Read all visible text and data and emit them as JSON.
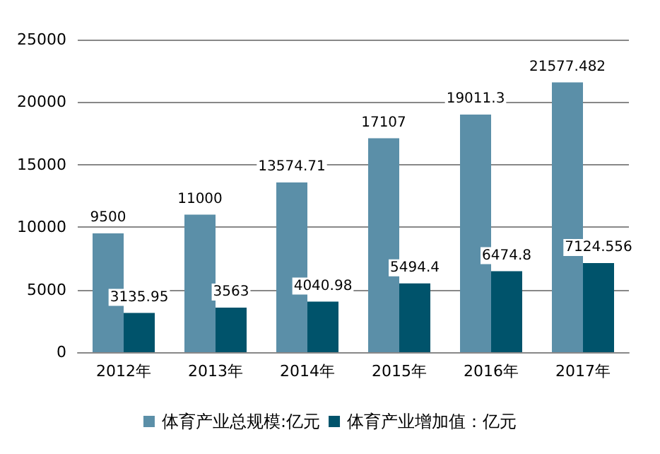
{
  "chart_data": {
    "type": "bar",
    "categories": [
      "2012年",
      "2013年",
      "2014年",
      "2015年",
      "2016年",
      "2017年"
    ],
    "series": [
      {
        "name": "体育产业总规模:亿元",
        "color": "#5b8fa8",
        "values": [
          9500,
          11000,
          13574.71,
          17107,
          19011.3,
          21577.482
        ]
      },
      {
        "name": "体育产业增加值：亿元",
        "color": "#00536b",
        "values": [
          3135.95,
          3563,
          4040.98,
          5494.4,
          6474.8,
          7124.556
        ]
      }
    ],
    "ylim": [
      0,
      25000
    ],
    "yticks": [
      0,
      5000,
      10000,
      15000,
      20000,
      25000
    ],
    "grid": "y",
    "legend": "bottom",
    "data_labels": true
  }
}
